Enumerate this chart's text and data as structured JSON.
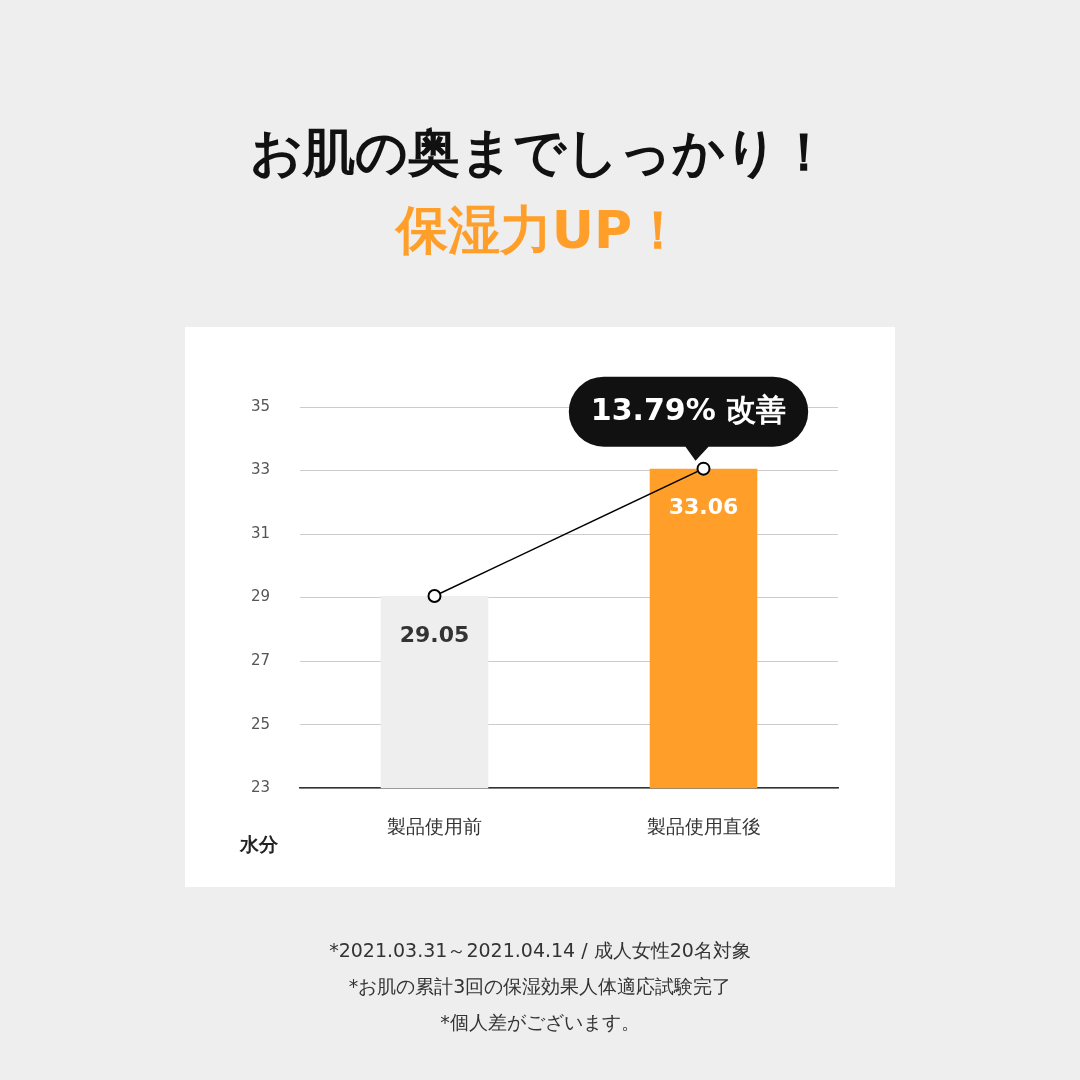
{
  "chart_data": {
    "type": "bar",
    "title": "お肌の奥までしっかり！",
    "subtitle": "保湿力UP！",
    "ylabel": "水分",
    "categories": [
      "製品使用前",
      "製品使用直後"
    ],
    "series": [
      {
        "colors": [
          "#eeeeee",
          "#ff9f2a"
        ],
        "values": [
          29.05,
          33.06
        ],
        "value_labels": [
          "29.05",
          "33.06"
        ]
      },
      {
        "type": "line",
        "color": "#000000",
        "values": [
          29.05,
          33.06
        ],
        "marker": "circle"
      }
    ],
    "ylim": [
      23,
      35
    ],
    "yticks": [
      23,
      25,
      27,
      29,
      31,
      33,
      35
    ],
    "grid": "y",
    "annotations": [
      {
        "text": "13.79% 改善",
        "x": "製品使用直後",
        "y": 33.06
      },
      "*2021.03.31～2021.04.14 / 成人女性20名対象",
      "*お肌の累計3回の保湿効果人体適応試験完了",
      "*個人差がございます。"
    ]
  }
}
